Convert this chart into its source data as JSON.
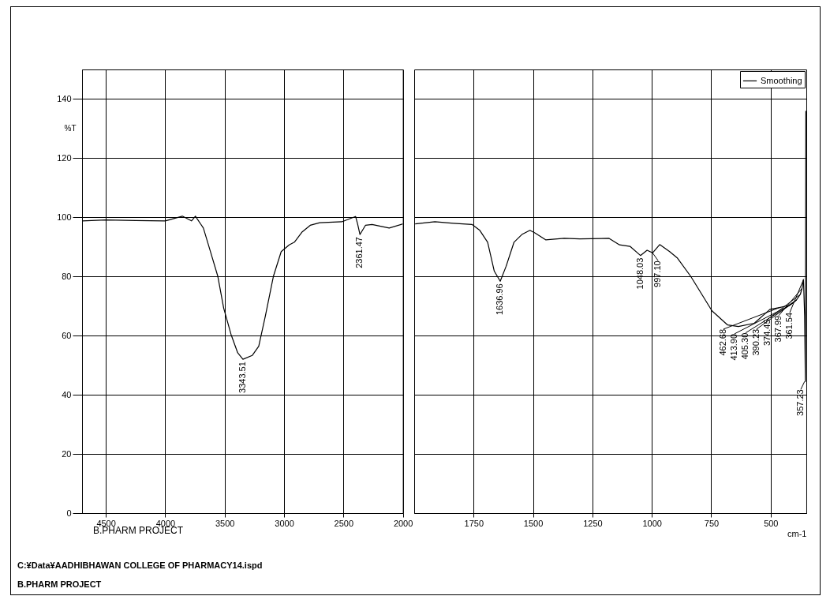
{
  "chart_data": [
    {
      "type": "line",
      "ylabel": "%T",
      "xlim": [
        4700,
        2000
      ],
      "xticks": [
        4500,
        4000,
        3500,
        3000,
        2500,
        2000
      ],
      "ylim": [
        0,
        150
      ],
      "yticks": [
        0,
        20,
        40,
        60,
        80,
        100,
        120,
        140
      ],
      "grid": true,
      "series": [
        {
          "color": "#000000",
          "x": [
            4700,
            4500,
            4250,
            4000,
            3856,
            3779,
            3746,
            3679,
            3623,
            3557,
            3508,
            3446,
            3390,
            3346,
            3268,
            3213,
            3157,
            3090,
            3024,
            2957,
            2913,
            2847,
            2780,
            2700,
            2514,
            2398,
            2381,
            2361,
            2315,
            2259,
            2115,
            2000
          ],
          "values": [
            98.8,
            99.1,
            98.9,
            98.8,
            100.4,
            98.8,
            100.4,
            96.4,
            88.9,
            80,
            69.3,
            60.4,
            54.2,
            52,
            53.3,
            56.4,
            66.7,
            80,
            88.4,
            90.7,
            91.6,
            95.1,
            97.3,
            98.2,
            98.5,
            100.3,
            97.8,
            94.2,
            97.3,
            97.6,
            96.4,
            97.8
          ]
        }
      ],
      "annotations": [
        "B.PHARM PROJECT",
        "C:¥Data¥AADHIBHAWAN COLLEGE OF PHARMACY14.ispd",
        "B.PHARM PROJECT",
        {
          "text": "3343.51",
          "x": 3343.51,
          "y": 52
        },
        {
          "text": "2361.47",
          "x": 2361.47,
          "y": 94.2
        }
      ]
    },
    {
      "type": "line",
      "xlabel": "cm-1",
      "xlim": [
        2000,
        350
      ],
      "xticks": [
        1750,
        1500,
        1250,
        1000,
        750,
        500
      ],
      "ylim": [
        0,
        150
      ],
      "yticks": [
        0,
        20,
        40,
        60,
        80,
        100,
        120,
        140
      ],
      "tick_labels": "x",
      "grid": true,
      "legend": "top right",
      "series": [
        {
          "name": "Smoothing",
          "color": "#000000",
          "x": [
            1996,
            1913,
            1835,
            1757,
            1724,
            1691,
            1663,
            1638,
            1613,
            1580,
            1547,
            1513,
            1491,
            1447,
            1369,
            1303,
            1180,
            1136,
            1092,
            1048,
            1020,
            997,
            967,
            925,
            892,
            836,
            747,
            681,
            636,
            569,
            503,
            463,
            425,
            392,
            375,
            368,
            362,
            357,
            354,
            352
          ],
          "values": [
            97.8,
            98.5,
            98,
            97.6,
            95.6,
            91.6,
            81.8,
            78.4,
            83.5,
            91.6,
            94.2,
            95.6,
            94.7,
            92.4,
            92.9,
            92.7,
            92.9,
            90.7,
            90.2,
            87.1,
            88.9,
            88,
            90.8,
            88.4,
            86.2,
            80,
            68.4,
            63.6,
            63.1,
            64.2,
            68.9,
            69.5,
            70.2,
            72,
            74,
            76,
            79,
            66.7,
            44.5,
            136
          ]
        }
      ],
      "annotations": [
        {
          "text": "1636.96",
          "x": 1636.96,
          "y": 78.4
        },
        {
          "text": "1048.03",
          "x": 1048.03,
          "y": 87.1
        },
        {
          "text": "997.10",
          "x": 997.1,
          "y": 88
        },
        {
          "text": "462.68",
          "x": 462.68,
          "y": 69.5
        },
        {
          "text": "413.90",
          "x": 413.9,
          "y": 70.5
        },
        {
          "text": "405.30",
          "x": 405.3,
          "y": 71
        },
        {
          "text": "390.23",
          "x": 390.23,
          "y": 72
        },
        {
          "text": "374.45",
          "x": 374.45,
          "y": 74
        },
        {
          "text": "367.99",
          "x": 367.99,
          "y": 76
        },
        {
          "text": "361.54",
          "x": 361.54,
          "y": 79
        },
        {
          "text": "357.23",
          "x": 357.23,
          "y": 44.5
        }
      ]
    }
  ]
}
